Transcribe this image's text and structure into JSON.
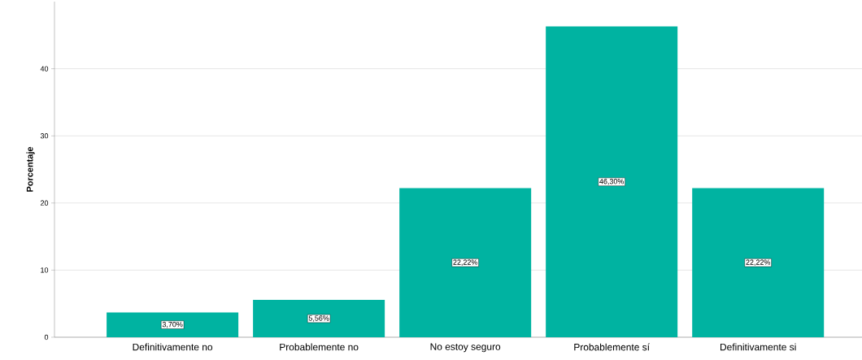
{
  "chart_data": {
    "type": "bar",
    "ylabel": "Porcentaje",
    "categories": [
      "Definitivamente no",
      "Probablemente no",
      "No estoy seguro",
      "Probablemente sí",
      "Definitivamente si"
    ],
    "values": [
      3.7,
      5.56,
      22.22,
      46.3,
      22.22
    ],
    "value_labels": [
      "3,70%",
      "5,56%",
      "22,22%",
      "46,30%",
      "22,22%"
    ],
    "color": "#00b3a1",
    "ylim": [
      0,
      50
    ],
    "yticks": [
      0,
      10,
      20,
      30,
      40
    ],
    "grid": "y"
  }
}
